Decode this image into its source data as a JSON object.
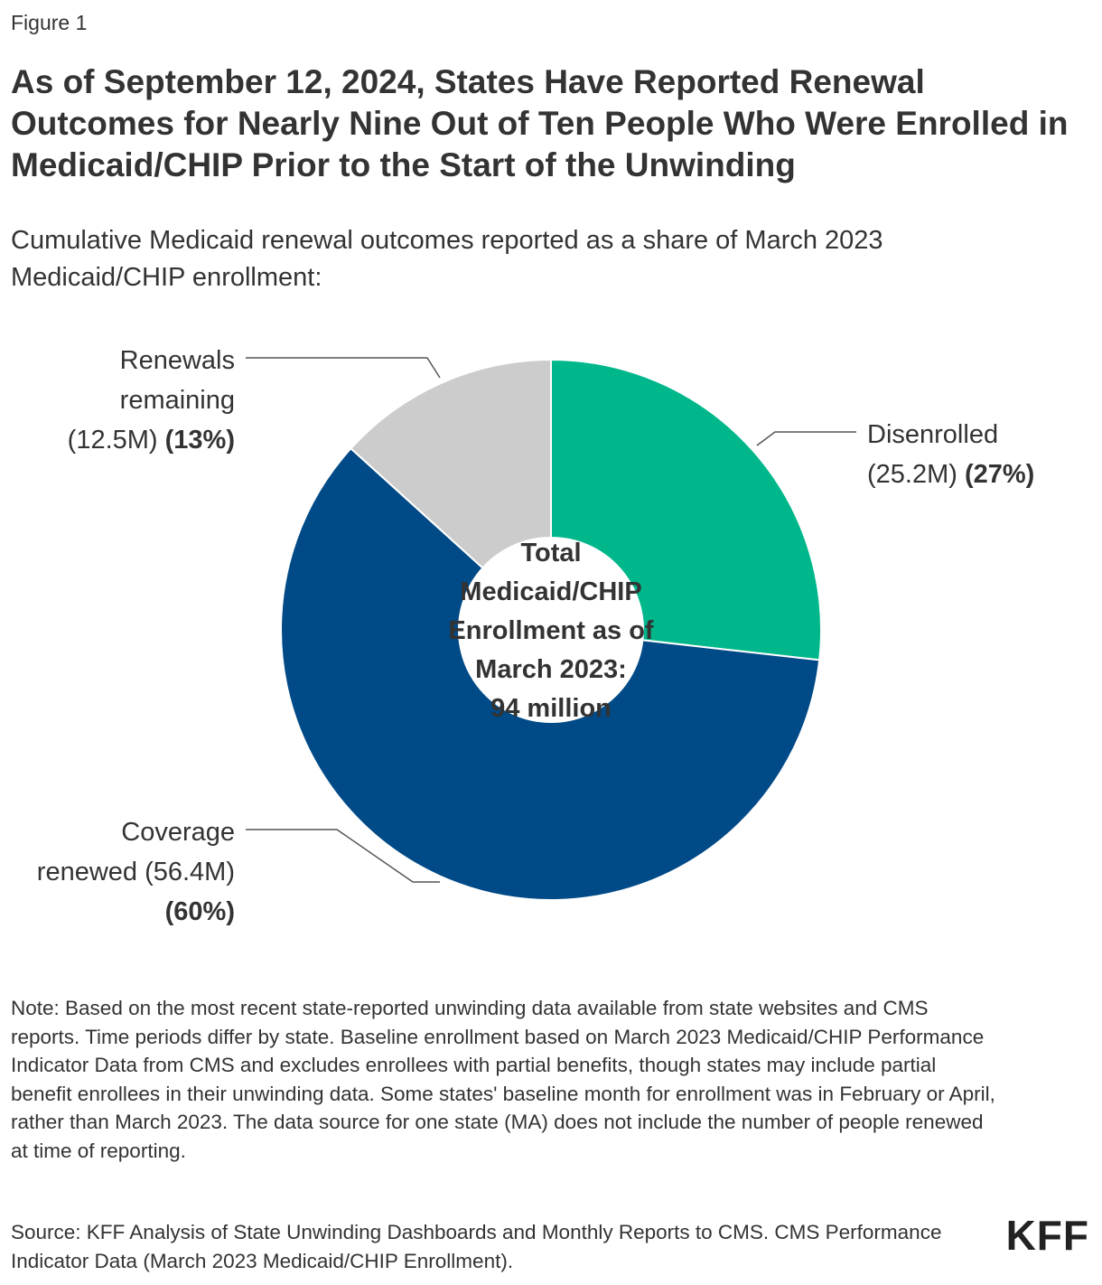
{
  "header": {
    "figure_label": "Figure 1",
    "title": "As of September 12, 2024, States Have Reported Renewal Outcomes for Nearly Nine Out of Ten People Who Were Enrolled in Medicaid/CHIP Prior to the Start of the Unwinding",
    "subtitle": "Cumulative Medicaid renewal outcomes reported as a share of March 2023 Medicaid/CHIP enrollment:"
  },
  "chart_data": {
    "type": "pie",
    "style": "donut",
    "slices": [
      {
        "name": "Disenrolled",
        "value_millions": 25.2,
        "percent": 27,
        "color": "#00b78b",
        "label_lines": [
          {
            "parts": [
              {
                "text": "Disenrolled",
                "bold": false
              }
            ]
          },
          {
            "parts": [
              {
                "text": "(25.2M) ",
                "bold": false
              },
              {
                "text": "(27%)",
                "bold": true
              }
            ]
          }
        ]
      },
      {
        "name": "Coverage renewed",
        "value_millions": 56.4,
        "percent": 60,
        "color": "#004a87",
        "label_lines": [
          {
            "parts": [
              {
                "text": "Coverage",
                "bold": false
              }
            ]
          },
          {
            "parts": [
              {
                "text": "renewed (56.4M)",
                "bold": false
              }
            ]
          },
          {
            "parts": [
              {
                "text": "(60%)",
                "bold": true
              }
            ]
          }
        ]
      },
      {
        "name": "Renewals remaining",
        "value_millions": 12.5,
        "percent": 13,
        "color": "#cccccc",
        "label_lines": [
          {
            "parts": [
              {
                "text": "Renewals",
                "bold": false
              }
            ]
          },
          {
            "parts": [
              {
                "text": "remaining",
                "bold": false
              }
            ]
          },
          {
            "parts": [
              {
                "text": "(12.5M) ",
                "bold": false
              },
              {
                "text": "(13%)",
                "bold": true
              }
            ]
          }
        ]
      }
    ],
    "center_label_lines": [
      "Total",
      "Medicaid/CHIP",
      "Enrollment as of",
      "March 2023:",
      "94 million"
    ],
    "total_millions": 94
  },
  "footer": {
    "note": "Note: Based on the most recent state-reported unwinding data available from state websites and CMS reports. Time periods differ by state. Baseline enrollment based on March 2023 Medicaid/CHIP Performance Indicator Data from CMS and excludes enrollees with partial benefits, though states may include partial benefit enrollees in their unwinding data. Some states' baseline month for enrollment was in February or April, rather than March 2023. The data source for one state (MA) does not include the number of people renewed at time of reporting.",
    "source": "Source: KFF Analysis of State Unwinding Dashboards and Monthly Reports to CMS. CMS Performance Indicator Data (March 2023 Medicaid/CHIP Enrollment).",
    "logo_text": "KFF"
  }
}
